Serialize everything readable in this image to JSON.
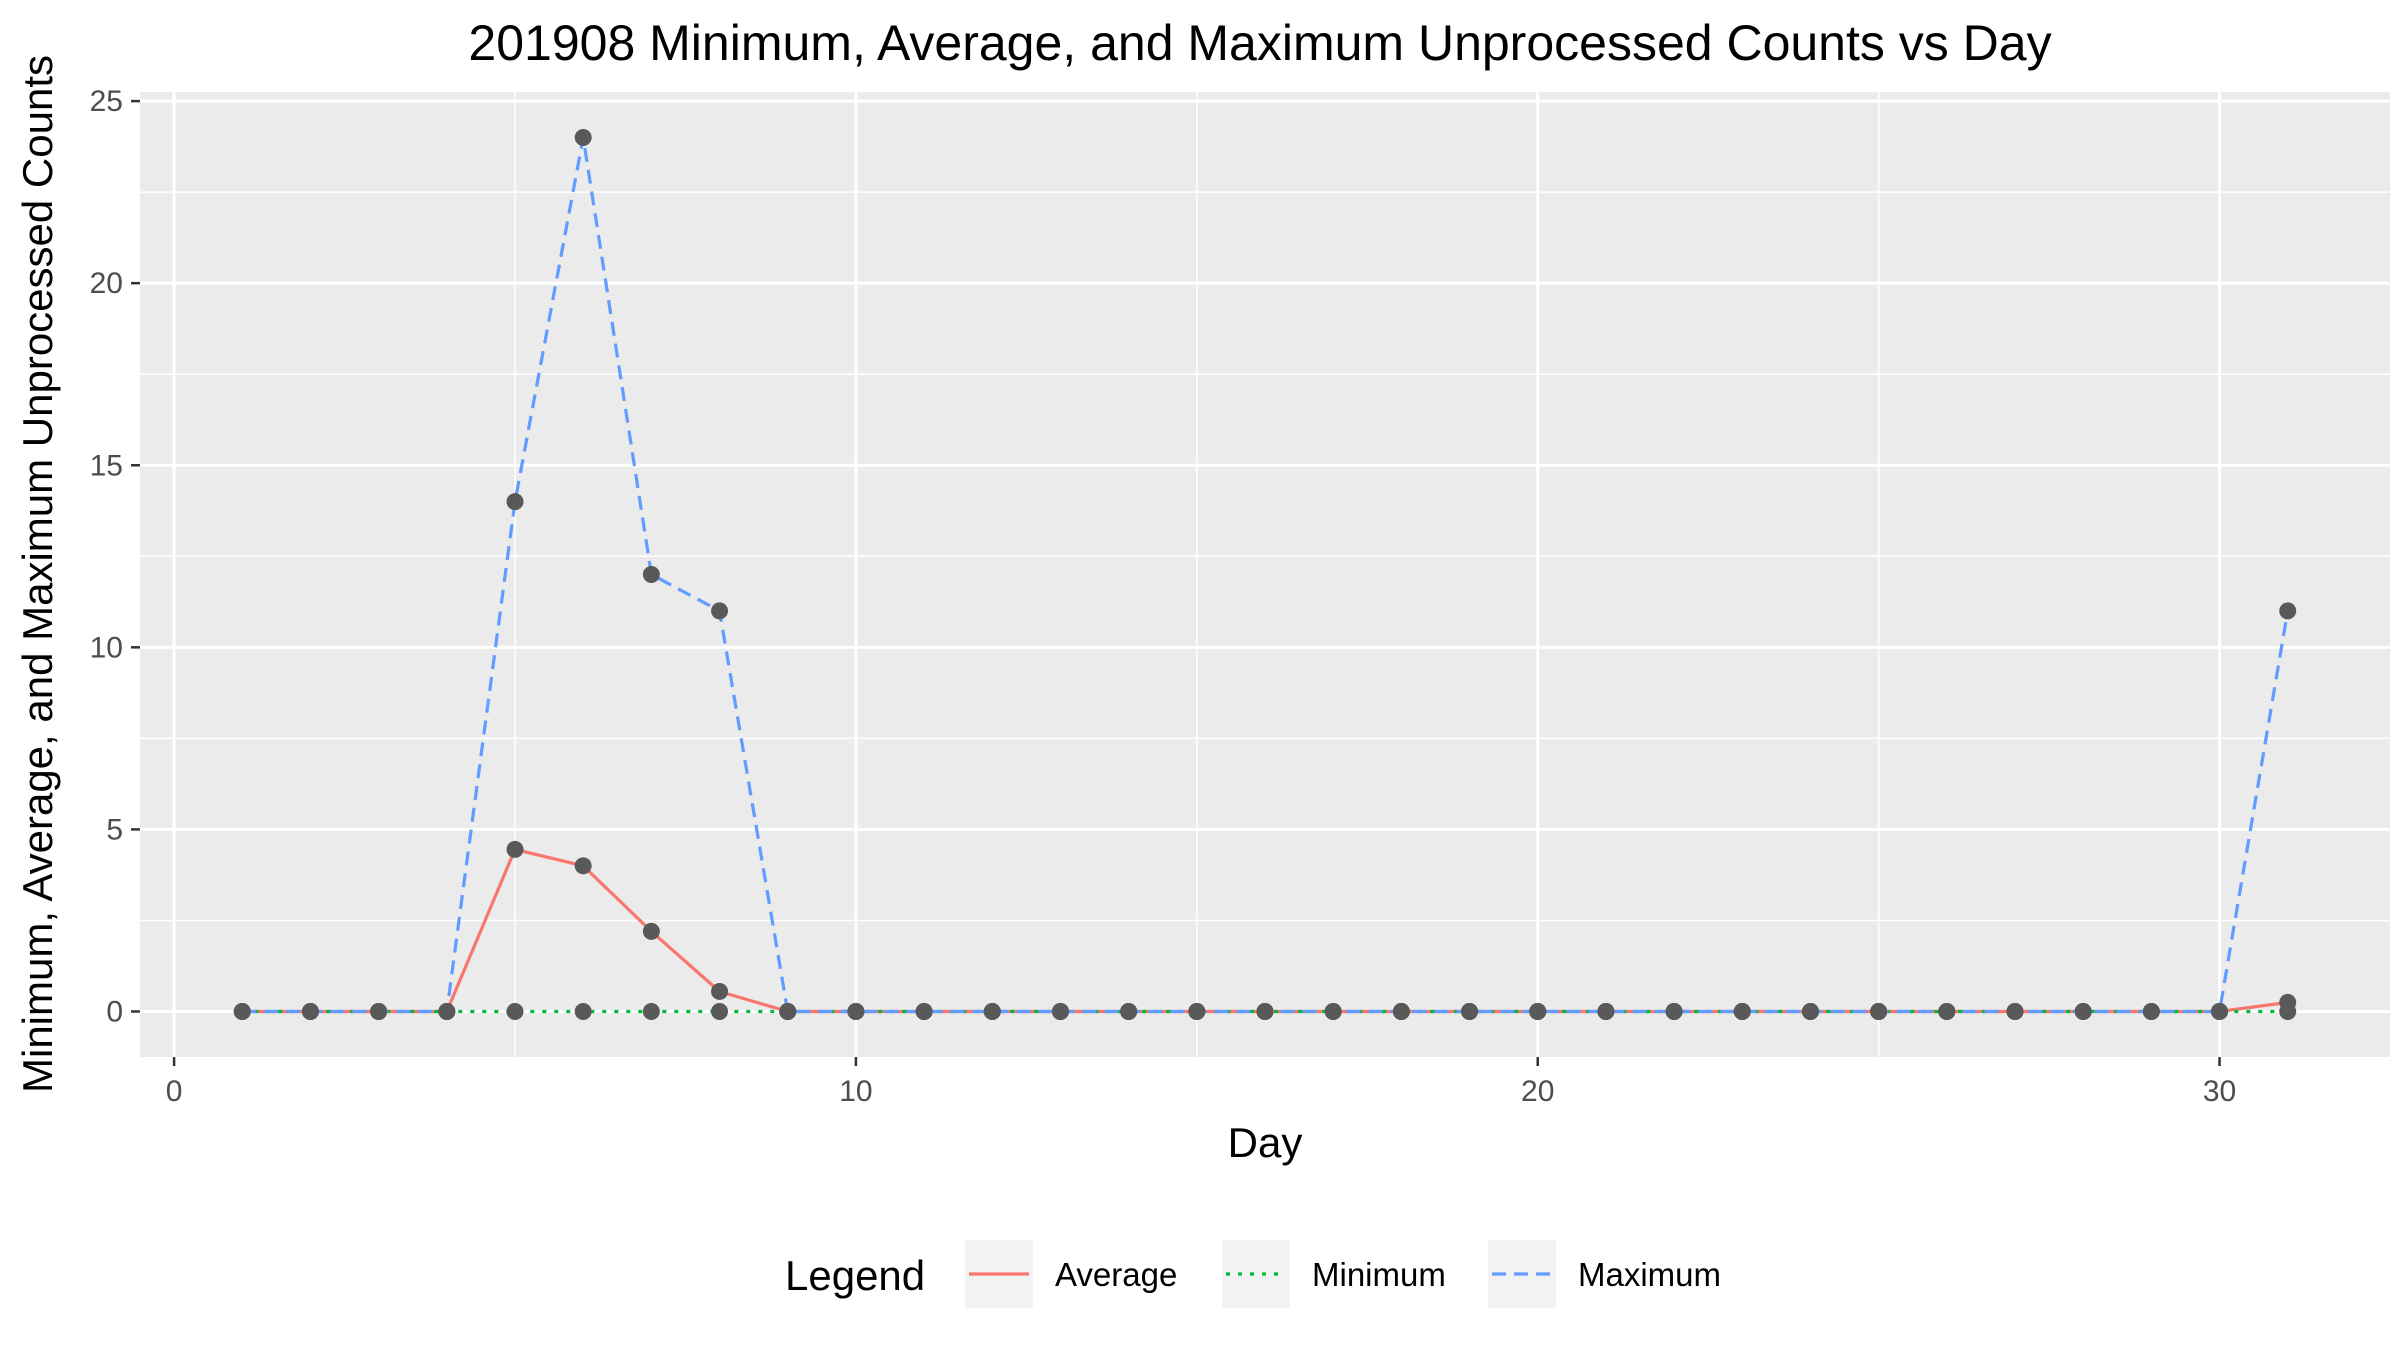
{
  "chart_data": {
    "type": "line",
    "title": "201908 Minimum, Average, and Maximum Unprocessed Counts vs Day",
    "xlabel": "Day",
    "ylabel": "Minimum, Average, and Maximum Unprocessed Counts",
    "xlim": [
      -0.5,
      32.5
    ],
    "ylim": [
      -1.25,
      25.25
    ],
    "x_ticks": [
      0,
      10,
      20,
      30
    ],
    "y_ticks": [
      0,
      5,
      10,
      15,
      20,
      25
    ],
    "x_tick_labels": [
      "0",
      "10",
      "20",
      "30"
    ],
    "y_tick_labels": [
      "0",
      "5",
      "10",
      "15",
      "20",
      "25"
    ],
    "grid": true,
    "legend": {
      "title": "Legend",
      "position": "bottom"
    },
    "x": [
      1,
      2,
      3,
      4,
      5,
      6,
      7,
      8,
      9,
      10,
      11,
      12,
      13,
      14,
      15,
      16,
      17,
      18,
      19,
      20,
      21,
      22,
      23,
      24,
      25,
      26,
      27,
      28,
      29,
      30,
      31
    ],
    "series": [
      {
        "name": "Average",
        "color": "#F8766D",
        "dash": "solid",
        "values": [
          0,
          0,
          0,
          0,
          4.45,
          4,
          2.2,
          0.55,
          0,
          0,
          0,
          0,
          0,
          0,
          0,
          0,
          0,
          0,
          0,
          0,
          0,
          0,
          0,
          0,
          0,
          0,
          0,
          0,
          0,
          0,
          0.25
        ]
      },
      {
        "name": "Minimum",
        "color": "#00BA38",
        "dash": "dotted",
        "values": [
          0,
          0,
          0,
          0,
          0,
          0,
          0,
          0,
          0,
          0,
          0,
          0,
          0,
          0,
          0,
          0,
          0,
          0,
          0,
          0,
          0,
          0,
          0,
          0,
          0,
          0,
          0,
          0,
          0,
          0,
          0
        ]
      },
      {
        "name": "Maximum",
        "color": "#619CFF",
        "dash": "dashed",
        "values": [
          0,
          0,
          0,
          0,
          14,
          24,
          12,
          11,
          0,
          0,
          0,
          0,
          0,
          0,
          0,
          0,
          0,
          0,
          0,
          0,
          0,
          0,
          0,
          0,
          0,
          0,
          0,
          0,
          0,
          0,
          11
        ]
      }
    ],
    "point_color": "#595959",
    "panel_background": "#EBEBEB"
  }
}
